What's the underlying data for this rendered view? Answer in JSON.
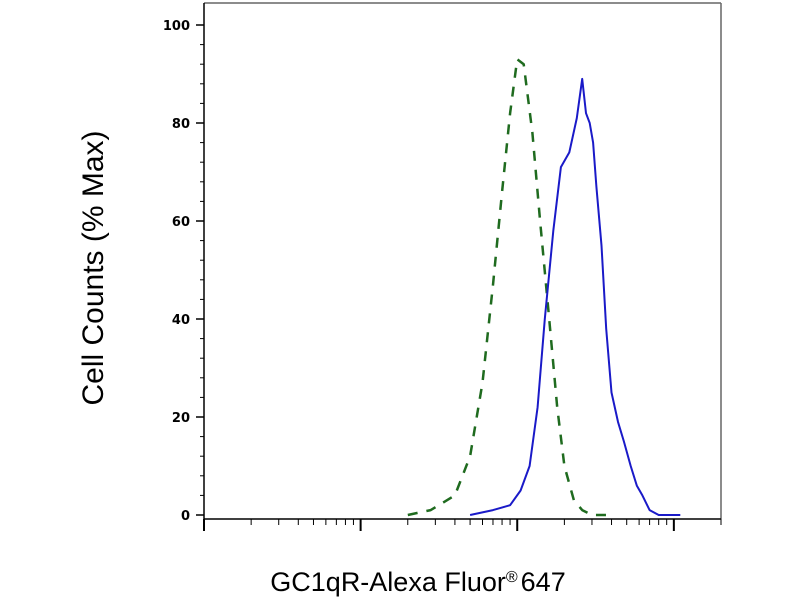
{
  "chart_data": {
    "type": "line",
    "title": "",
    "xlabel": "GC1qR-Alexa Fluor",
    "xlabel_mark": "®",
    "xlabel_suffix": "647",
    "ylabel": "Cell Counts (% Max)",
    "xscale": "log",
    "xlim": [
      1,
      2000
    ],
    "ylim": [
      0,
      100
    ],
    "yticks": [
      0,
      20,
      40,
      60,
      80,
      100
    ],
    "ytick_labels": [
      "0",
      "20",
      "40",
      "60",
      "80",
      "100"
    ],
    "grid": false,
    "legend": "none",
    "series": [
      {
        "style": "dashed",
        "color": "#1f6b1f",
        "x": [
          20,
          28,
          40,
          50,
          60,
          70,
          80,
          90,
          100,
          110,
          125,
          140,
          160,
          180,
          200,
          230,
          260,
          300,
          400
        ],
        "y": [
          0,
          1,
          4,
          12,
          27,
          47,
          66,
          82,
          93,
          92,
          78,
          60,
          40,
          22,
          10,
          3,
          1,
          0,
          0
        ]
      },
      {
        "style": "solid",
        "color": "#1a1ac8",
        "x": [
          50,
          70,
          90,
          105,
          120,
          135,
          150,
          170,
          190,
          215,
          240,
          260,
          275,
          290,
          305,
          320,
          345,
          370,
          400,
          440,
          480,
          530,
          580,
          630,
          700,
          800,
          950,
          1100
        ],
        "y": [
          0,
          1,
          2,
          5,
          10,
          22,
          40,
          58,
          71,
          74,
          81,
          89,
          82,
          80,
          76,
          67,
          55,
          38,
          25,
          19,
          15,
          10,
          6,
          4,
          1,
          0,
          0,
          0
        ]
      }
    ]
  }
}
